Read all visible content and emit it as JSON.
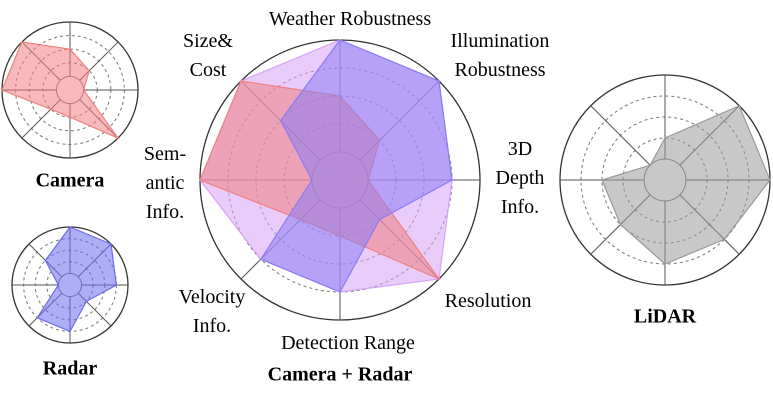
{
  "chart_data": [
    {
      "type": "radar",
      "title": "Camera",
      "ylim": [
        0,
        5
      ],
      "yticks": [
        1,
        2,
        3,
        4,
        5
      ],
      "series": [
        {
          "color": "#f08080",
          "values": [
            3,
            2,
            1,
            5,
            2,
            2,
            5,
            5
          ]
        }
      ]
    },
    {
      "type": "radar",
      "title": "Radar",
      "ylim": [
        0,
        5
      ],
      "yticks": [
        1,
        2,
        3,
        4,
        5
      ],
      "series": [
        {
          "color": "#6b6bf0",
          "values": [
            5,
            5,
            4,
            2,
            4,
            4,
            1,
            3
          ]
        }
      ]
    },
    {
      "type": "radar",
      "title": "Camera + Radar",
      "ylim": [
        0,
        5
      ],
      "yticks": [
        1,
        2,
        3,
        4,
        5
      ],
      "categories": [
        "Weather Robustness",
        "Illumination\nRobustness",
        "3D\nDepth\nInfo.",
        "Resolution",
        "Detection Range",
        "Velocity\nInfo.",
        "Sem-\nantic\nInfo.",
        "Size&\nCost"
      ],
      "series": [
        {
          "color": "#d9a3f7",
          "values": [
            5,
            5,
            4,
            5,
            4,
            4,
            5,
            5
          ]
        },
        {
          "color": "#f08080",
          "values": [
            3,
            2,
            1,
            5,
            2,
            2,
            5,
            5
          ]
        },
        {
          "color": "#8a7cf5",
          "values": [
            5,
            5,
            4,
            2,
            4,
            4,
            1,
            3
          ]
        }
      ]
    },
    {
      "type": "radar",
      "title": "LiDAR",
      "ylim": [
        0,
        5
      ],
      "yticks": [
        1,
        2,
        3,
        4,
        5
      ],
      "series": [
        {
          "color": "#9a9a9a",
          "values": [
            2,
            5,
            5,
            4,
            4,
            3,
            3,
            1
          ]
        }
      ]
    }
  ]
}
